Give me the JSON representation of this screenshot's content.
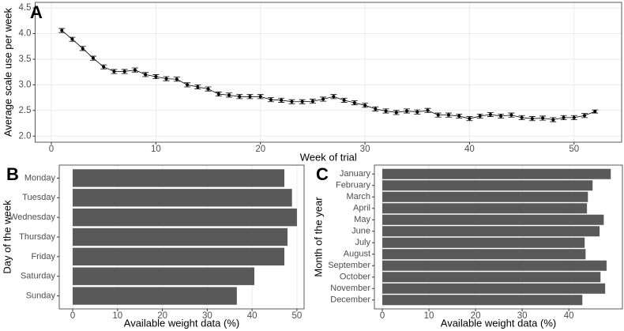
{
  "chart_data": [
    {
      "type": "line",
      "panel_label": "A",
      "x_label": "Week of trial",
      "y_label": "Average scale use per week",
      "x": [
        1,
        2,
        3,
        4,
        5,
        6,
        7,
        8,
        9,
        10,
        11,
        12,
        13,
        14,
        15,
        16,
        17,
        18,
        19,
        20,
        21,
        22,
        23,
        24,
        25,
        26,
        27,
        28,
        29,
        30,
        31,
        32,
        33,
        34,
        35,
        36,
        37,
        38,
        39,
        40,
        41,
        42,
        43,
        44,
        45,
        46,
        47,
        48,
        49,
        50,
        51,
        52
      ],
      "values": [
        4.06,
        3.89,
        3.71,
        3.52,
        3.35,
        3.26,
        3.26,
        3.29,
        3.2,
        3.16,
        3.12,
        3.11,
        3.0,
        2.96,
        2.92,
        2.82,
        2.8,
        2.77,
        2.77,
        2.77,
        2.71,
        2.7,
        2.67,
        2.67,
        2.68,
        2.72,
        2.77,
        2.7,
        2.65,
        2.6,
        2.53,
        2.49,
        2.46,
        2.49,
        2.47,
        2.5,
        2.41,
        2.41,
        2.39,
        2.34,
        2.39,
        2.42,
        2.39,
        2.41,
        2.36,
        2.34,
        2.35,
        2.32,
        2.36,
        2.36,
        2.4,
        2.48
      ],
      "errors": [
        0.04,
        0.04,
        0.04,
        0.04,
        0.04,
        0.04,
        0.04,
        0.04,
        0.04,
        0.04,
        0.04,
        0.04,
        0.04,
        0.04,
        0.04,
        0.04,
        0.04,
        0.04,
        0.04,
        0.04,
        0.04,
        0.04,
        0.04,
        0.04,
        0.04,
        0.04,
        0.04,
        0.04,
        0.04,
        0.04,
        0.04,
        0.04,
        0.04,
        0.04,
        0.04,
        0.04,
        0.04,
        0.04,
        0.04,
        0.04,
        0.04,
        0.04,
        0.04,
        0.04,
        0.04,
        0.04,
        0.04,
        0.04,
        0.04,
        0.04,
        0.04,
        0.03
      ],
      "color": "#000000",
      "xlim": [
        -1.55,
        54.55
      ],
      "xticks": [
        0,
        10,
        20,
        30,
        40,
        50
      ],
      "ylim": [
        1.88,
        4.61
      ],
      "yticks": [
        {
          "value": 2,
          "label": "2.0"
        },
        2.5,
        {
          "value": 3,
          "label": "3.0"
        },
        3.5,
        {
          "value": 4,
          "label": "4.0"
        },
        4.5
      ],
      "grid": true
    },
    {
      "type": "bar",
      "orientation": "horizontal",
      "panel_label": "B",
      "x_label": "Available weight data (%)",
      "y_label": "Day of the week",
      "categories": [
        "Monday",
        "Tuesday",
        "Wednesday",
        "Thursday",
        "Friday",
        "Saturday",
        "Sunday"
      ],
      "values": [
        47.2,
        48.9,
        50.0,
        47.9,
        47.2,
        40.5,
        36.6
      ],
      "color": "#595959",
      "xlim": [
        -3,
        51.6
      ],
      "xticks": [
        0,
        10,
        20,
        30,
        40,
        50
      ],
      "grid": true
    },
    {
      "type": "bar",
      "orientation": "horizontal",
      "panel_label": "C",
      "x_label": "Available weight data (%)",
      "y_label": "Month of the year",
      "categories": [
        "January",
        "February",
        "March",
        "April",
        "May",
        "June",
        "July",
        "August",
        "September",
        "October",
        "November",
        "December"
      ],
      "values": [
        49.0,
        45.1,
        44.1,
        43.9,
        47.5,
        46.6,
        43.4,
        43.6,
        48.1,
        46.8,
        47.8,
        42.9
      ],
      "color": "#595959",
      "xlim": [
        -1.7,
        51.5
      ],
      "xticks": [
        0,
        10,
        20,
        30,
        40
      ],
      "grid": true
    }
  ]
}
